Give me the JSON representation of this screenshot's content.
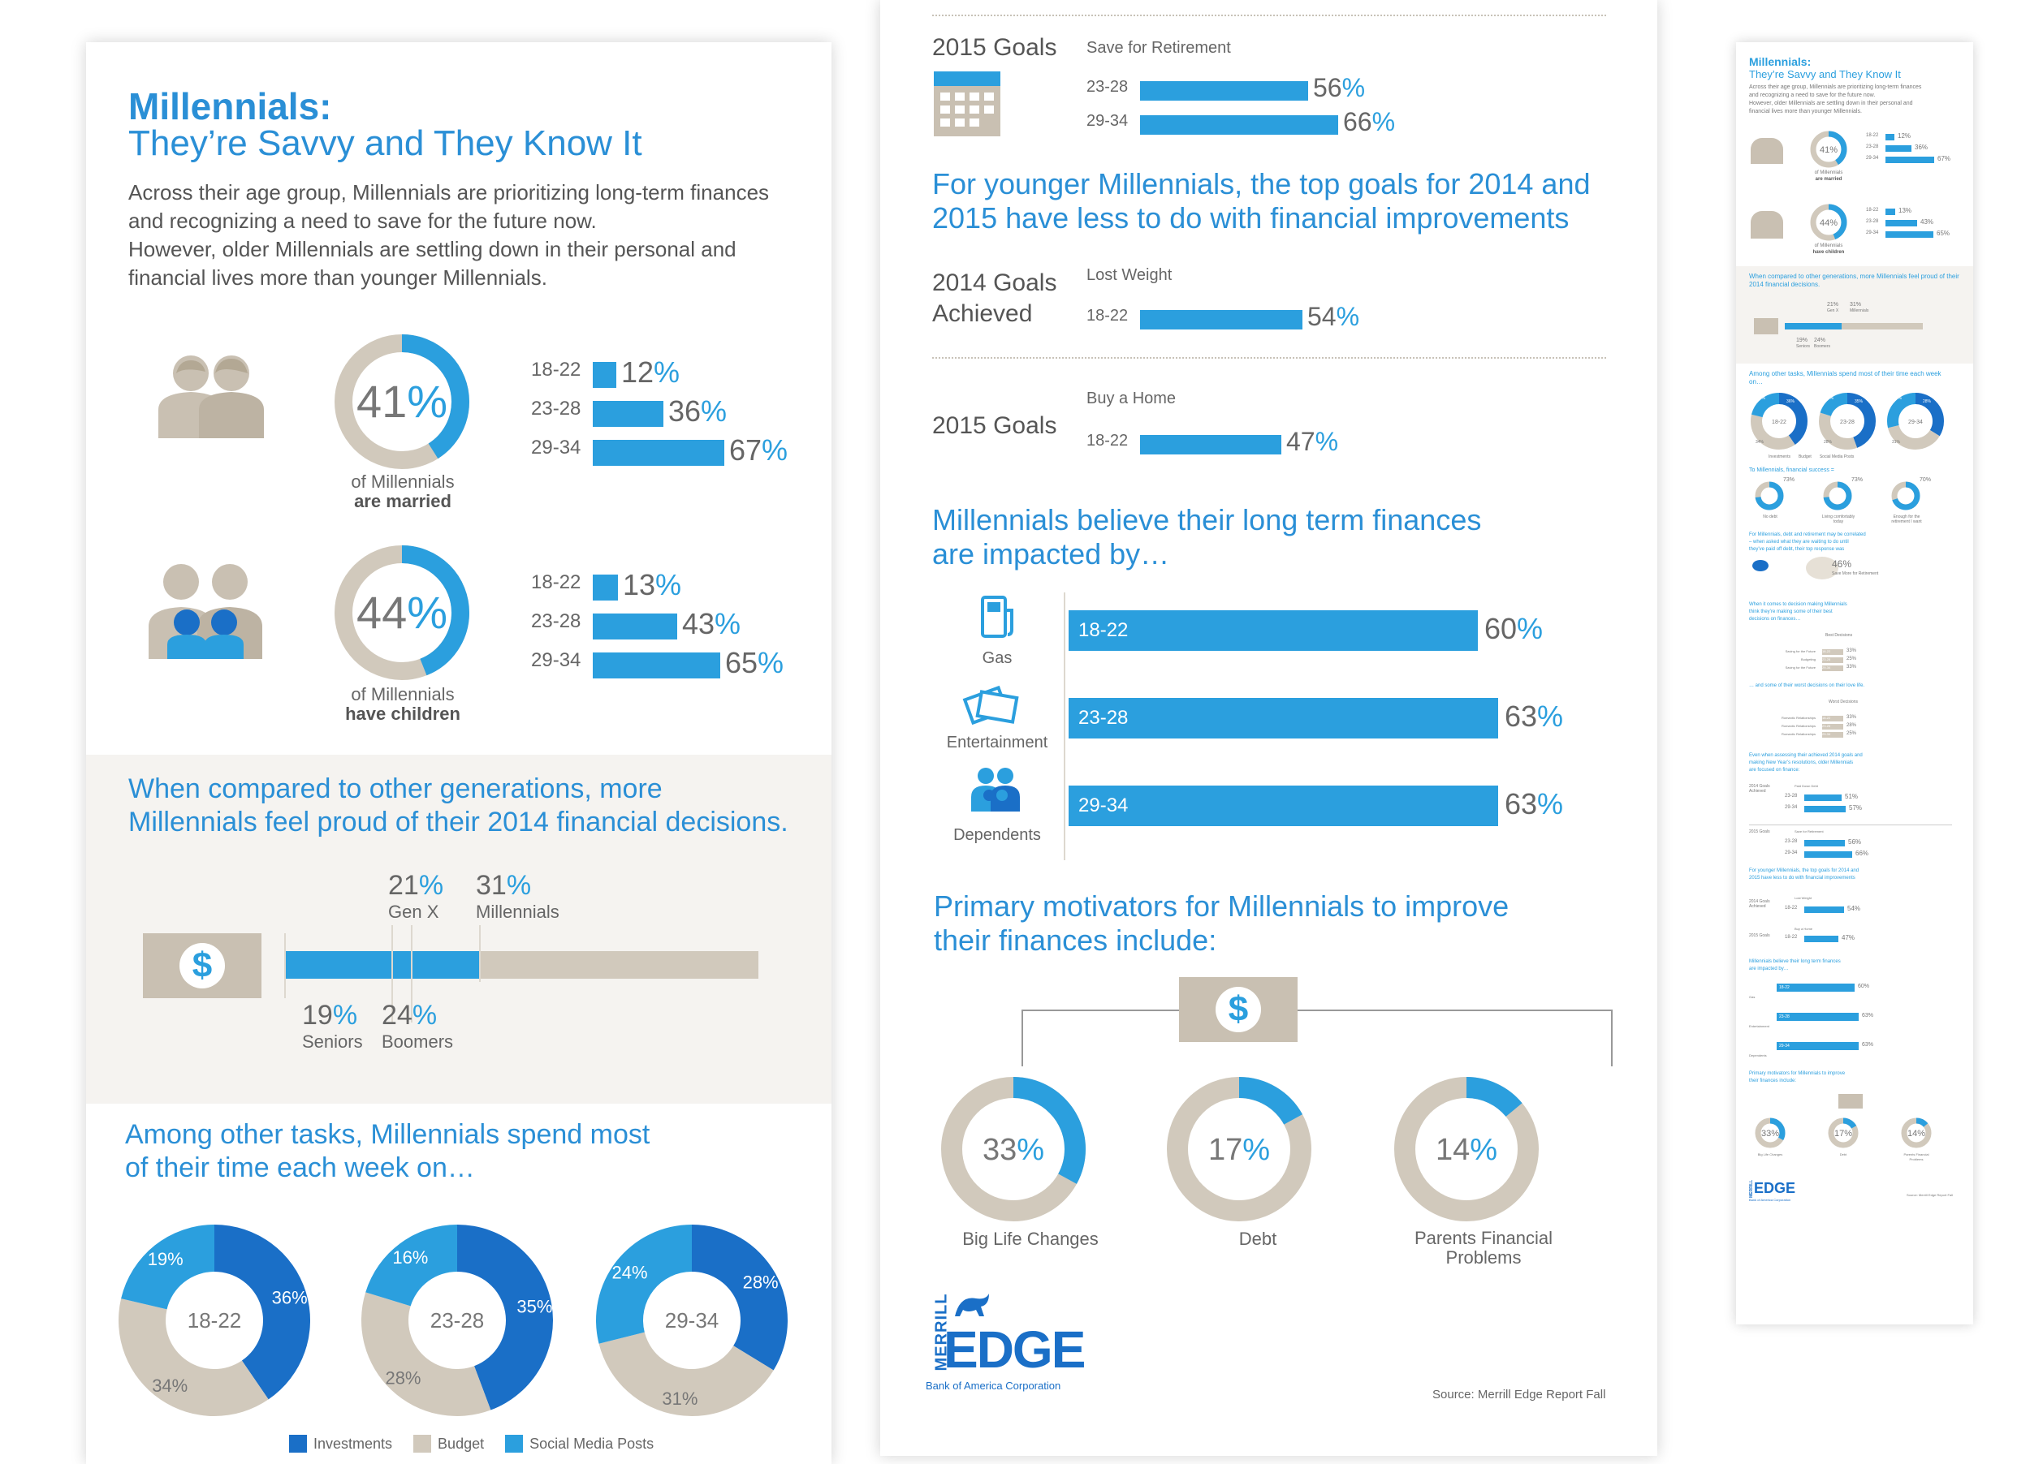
{
  "colors": {
    "blue": "#2b9fde",
    "dark_blue": "#1a6fc7",
    "tan": "#d1c9bc",
    "beige": "#f5f3f0"
  },
  "left": {
    "title_bold": "Millennials:",
    "title_light": "They’re Savvy and They Know It",
    "intro": [
      "Across their age group, Millennials are prioritizing long-term finances",
      "and recognizing a need to save for the future now.",
      "However, older Millennials are settling down in their personal and",
      "financial lives more than younger Millennials."
    ],
    "married": {
      "value": "41",
      "unit": "%",
      "fraction": 0.41,
      "caption1": "of Millennials",
      "caption2": "are married",
      "icon": "couple-icon",
      "rows": [
        {
          "age": "18-22",
          "value": "12",
          "fraction": 0.12
        },
        {
          "age": "23-28",
          "value": "36",
          "fraction": 0.36
        },
        {
          "age": "29-34",
          "value": "67",
          "fraction": 0.67
        }
      ]
    },
    "children": {
      "value": "44",
      "unit": "%",
      "fraction": 0.44,
      "caption1": "of Millennials",
      "caption2": "have children",
      "icon": "family-icon",
      "rows": [
        {
          "age": "18-22",
          "value": "13",
          "fraction": 0.13
        },
        {
          "age": "23-28",
          "value": "43",
          "fraction": 0.43
        },
        {
          "age": "29-34",
          "value": "65",
          "fraction": 0.65
        }
      ]
    },
    "proud": {
      "heading1": "When compared to other generations, more",
      "heading2": "Millennials feel proud of their 2014 financial decisions.",
      "icon": "dollar-bill-icon",
      "items": [
        {
          "value": "21",
          "label": "Gen X"
        },
        {
          "value": "31",
          "label": "Millennials"
        },
        {
          "value": "19",
          "label": "Seniors"
        },
        {
          "value": "24",
          "label": "Boomers"
        }
      ]
    },
    "time": {
      "heading1": "Among other tasks, Millennials spend most",
      "heading2": "of their time each week on…",
      "donuts": [
        {
          "center": "18-22",
          "investments": 36,
          "budget": 34,
          "social": 19
        },
        {
          "center": "23-28",
          "investments": 35,
          "budget": 28,
          "social": 16
        },
        {
          "center": "29-34",
          "investments": 28,
          "budget": 31,
          "social": 24
        }
      ],
      "legend": [
        "Investments",
        "Budget",
        "Social Media Posts"
      ]
    }
  },
  "middle": {
    "goals2015a": {
      "label": "2015 Goals",
      "subtitle": "Save for Retirement",
      "icon": "calendar-icon",
      "rows": [
        {
          "age": "23-28",
          "value": "56",
          "fraction": 0.56
        },
        {
          "age": "29-34",
          "value": "66",
          "fraction": 0.66
        }
      ]
    },
    "younger_heading1": "For younger Millennials, the top goals for 2014 and",
    "younger_heading2": "2015 have less to do with financial improvements",
    "goals2014": {
      "label1": "2014 Goals",
      "label2": "Achieved",
      "subtitle": "Lost Weight",
      "rows": [
        {
          "age": "18-22",
          "value": "54",
          "fraction": 0.54
        }
      ]
    },
    "goals2015b": {
      "label": "2015 Goals",
      "subtitle": "Buy a Home",
      "rows": [
        {
          "age": "18-22",
          "value": "47",
          "fraction": 0.47
        }
      ]
    },
    "impact": {
      "heading1": "Millennials believe their long term finances",
      "heading2": "are impacted by…",
      "rows": [
        {
          "label": "Gas",
          "icon": "gas-pump-icon",
          "age": "18-22",
          "value": "60",
          "fraction": 0.6
        },
        {
          "label": "Entertainment",
          "icon": "tickets-icon",
          "age": "23-28",
          "value": "63",
          "fraction": 0.63
        },
        {
          "label": "Dependents",
          "icon": "dependents-icon",
          "age": "29-34",
          "value": "63",
          "fraction": 0.63
        }
      ]
    },
    "motivators": {
      "heading1": "Primary motivators for Millennials to improve",
      "heading2": "their finances include:",
      "items": [
        {
          "value": "33",
          "fraction": 0.33,
          "label1": "Big Life Changes",
          "label2": ""
        },
        {
          "value": "17",
          "fraction": 0.17,
          "label1": "Debt",
          "label2": ""
        },
        {
          "value": "14",
          "fraction": 0.14,
          "label1": "Parents Financial",
          "label2": "Problems"
        }
      ]
    },
    "logo": {
      "merrill": "MERRILL",
      "edge": "EDGE",
      "sub": "Bank of America Corporation"
    },
    "source": "Source: Merrill Edge Report Fall"
  },
  "thumb": {
    "title1": "Millennials:",
    "title2": "They’re Savvy and They Know It",
    "intro": [
      "Across their age group, Millennials are prioritizing long-term finances",
      "and recognizing a need to save for the future now.",
      "However, older Millennials are settling down in their personal and",
      "financial lives more than younger Millennials."
    ],
    "married": {
      "value": "41%",
      "cap1": "of Millennials",
      "cap2": "are married",
      "rows": [
        {
          "age": "18-22",
          "v": "12%",
          "f": 0.12
        },
        {
          "age": "23-28",
          "v": "36%",
          "f": 0.36
        },
        {
          "age": "29-34",
          "v": "67%",
          "f": 0.67
        }
      ]
    },
    "children": {
      "value": "44%",
      "cap1": "of Millennials",
      "cap2": "have children",
      "rows": [
        {
          "age": "18-22",
          "v": "13%",
          "f": 0.13
        },
        {
          "age": "23-28",
          "v": "43%",
          "f": 0.43
        },
        {
          "age": "29-34",
          "v": "65%",
          "f": 0.65
        }
      ]
    },
    "proud": "When compared to other generations, more Millennials feel proud of their 2014 financial decisions.",
    "proud_vals": {
      "a": "21%",
      "b": "31%",
      "al": "Gen X",
      "bl": "Millennials",
      "c": "19%",
      "d": "24%",
      "cl": "Seniors",
      "dl": "Boomers"
    },
    "time": "Among other tasks, Millennials spend most of their time each week on…",
    "time_donuts": [
      {
        "c": "18-22",
        "i": "36%",
        "b": "34%",
        "s": "19%",
        "iv": 36,
        "bv": 34,
        "sv": 19
      },
      {
        "c": "23-28",
        "i": "35%",
        "b": "28%",
        "s": "16%",
        "iv": 35,
        "bv": 28,
        "sv": 16
      },
      {
        "c": "29-34",
        "i": "28%",
        "b": "31%",
        "s": "24%",
        "iv": 28,
        "bv": 31,
        "sv": 24
      }
    ],
    "legend": [
      "Investments",
      "Budget",
      "Social Media Posts"
    ],
    "success": "To Millennials, financial success =",
    "success_items": [
      {
        "v": "73%",
        "l1": "No debt",
        "l2": ""
      },
      {
        "v": "73%",
        "l1": "Living comfortably",
        "l2": "today"
      },
      {
        "v": "70%",
        "l1": "Enough for the",
        "l2": "retirement I want"
      }
    ],
    "debt": [
      "For Millennials, debt and retirement may be correlated",
      "– when asked what they are waiting to do until",
      "they’ve paid off debt, their top response was"
    ],
    "debt_value": "46%",
    "debt_label": "Save More for Retirement",
    "decisions": [
      "When it comes to decision making Millennials",
      "think they’re making some of their best",
      "decisions on finances…"
    ],
    "best": "Best Decisions",
    "best_rows": [
      {
        "l": "Saving for the Future",
        "a": "18-22",
        "v": "33%"
      },
      {
        "l": "Budgeting",
        "a": "23-28",
        "v": "25%"
      },
      {
        "l": "Saving for the Future",
        "a": "29-34",
        "v": "33%"
      }
    ],
    "worst_intro": "… and some of their worst decisions on their love life.",
    "worst": "Worst Decisions",
    "worst_rows": [
      {
        "l": "Romantic Relationships",
        "a": "18-22",
        "v": "33%"
      },
      {
        "l": "Romantic Relationships",
        "a": "23-28",
        "v": "28%"
      },
      {
        "l": "Romantic Relationships",
        "a": "29-34",
        "v": "25%"
      }
    ],
    "assess": [
      "Even when assessing their achieved 2014 goals and",
      "making New Year’s resolutions, older Millennials",
      "are focused on finance:"
    ],
    "g14": {
      "l1": "2014 Goals",
      "l2": "Achieved",
      "sub": "Paid Down Debt",
      "rows": [
        {
          "a": "23-28",
          "v": "51%",
          "f": 0.51
        },
        {
          "a": "29-34",
          "v": "57%",
          "f": 0.57
        }
      ]
    },
    "g15": {
      "l": "2015 Goals",
      "sub": "Save for Retirement",
      "rows": [
        {
          "a": "23-28",
          "v": "56%",
          "f": 0.56
        },
        {
          "a": "29-34",
          "v": "66%",
          "f": 0.66
        }
      ]
    },
    "younger": [
      "For younger Millennials, the top goals for 2014 and",
      "2015 have less to do with financial improvements"
    ],
    "g14b": {
      "l1": "2014 Goals",
      "l2": "Achieved",
      "sub": "Lost Weight",
      "a": "18-22",
      "v": "54%",
      "f": 0.54
    },
    "g15b": {
      "l": "2015 Goals",
      "sub": "Buy a Home",
      "a": "18-22",
      "v": "47%",
      "f": 0.47
    },
    "impact": [
      "Millennials believe their long term finances",
      "are impacted by…"
    ],
    "impact_rows": [
      {
        "l": "Gas",
        "a": "18-22",
        "v": "60%",
        "f": 0.6
      },
      {
        "l": "Entertainment",
        "a": "23-28",
        "v": "63%",
        "f": 0.63
      },
      {
        "l": "Dependents",
        "a": "29-34",
        "v": "63%",
        "f": 0.63
      }
    ],
    "motiv": [
      "Primary motivators for Millennials to improve",
      "their finances include:"
    ],
    "motiv_items": [
      {
        "v": "33%",
        "f": 0.33,
        "l1": "Big Life Changes",
        "l2": ""
      },
      {
        "v": "17%",
        "f": 0.17,
        "l1": "Debt",
        "l2": ""
      },
      {
        "v": "14%",
        "f": 0.14,
        "l1": "Parents Financial",
        "l2": "Problems"
      }
    ],
    "logo_m": "MERRILL",
    "logo_e": "EDGE",
    "logo_sub": "Bank of America Corporation",
    "source": "Source: Merrill Edge Report Fall"
  }
}
